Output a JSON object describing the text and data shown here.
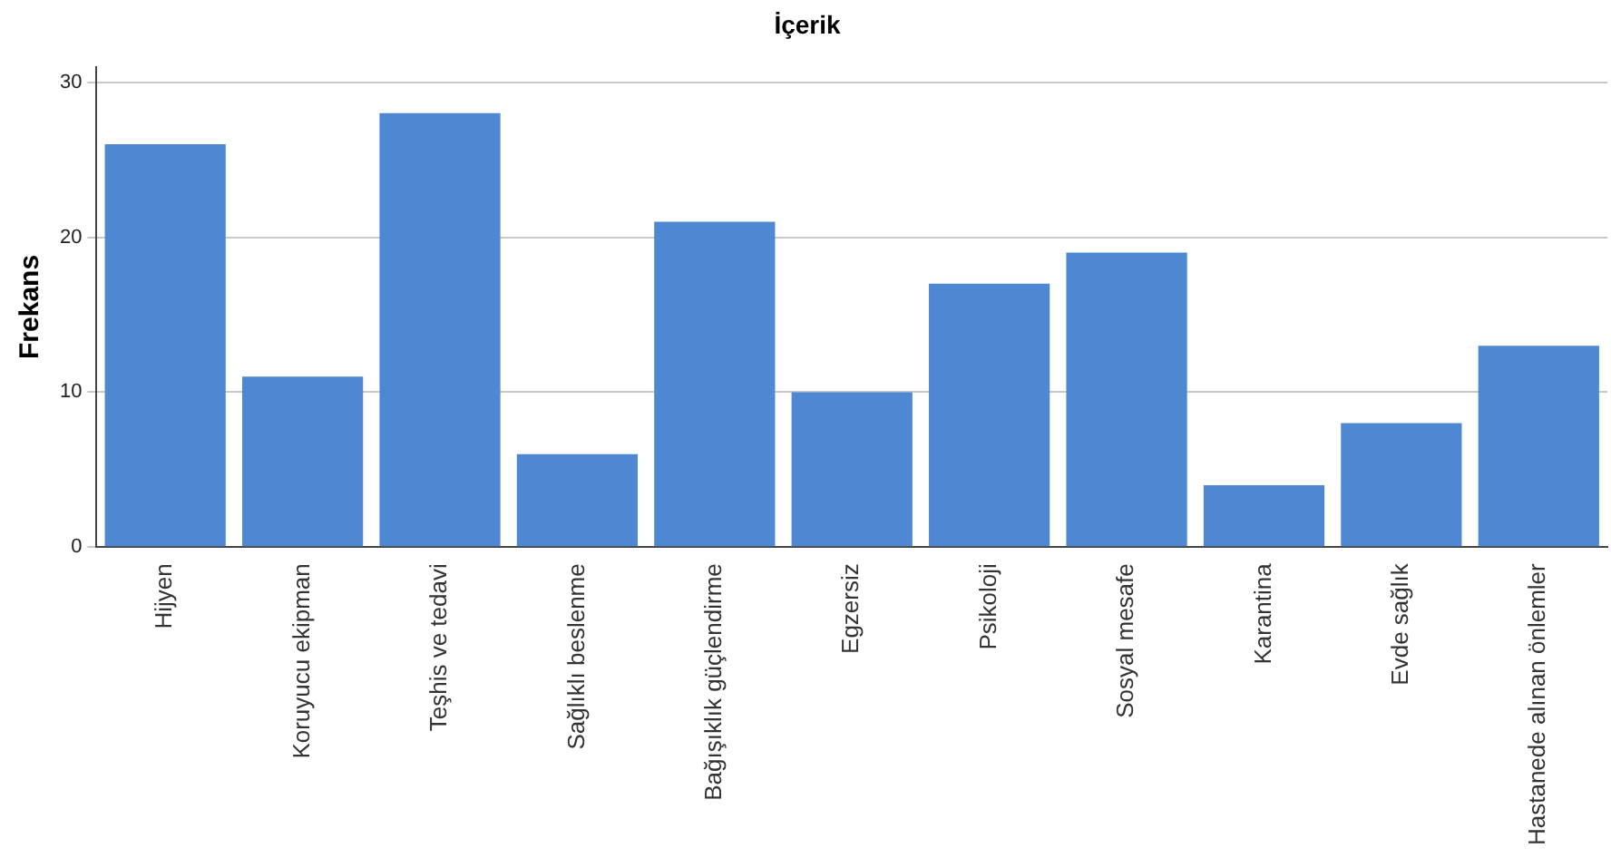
{
  "chart_data": {
    "type": "bar",
    "title": "İçerik",
    "ylabel": "Frekans",
    "categories": [
      "Hijyen",
      "Koruyucu ekipman",
      "Teşhis ve tedavi",
      "Sağlıklı beslenme",
      "Bağışıklık güçlendirme",
      "Egzersiz",
      "Psikoloji",
      "Sosyal mesafe",
      "Karantina",
      "Evde sağlık",
      "Hastanede alınan önlemler"
    ],
    "values": [
      26,
      11,
      28,
      6,
      21,
      10,
      17,
      19,
      4,
      8,
      13
    ],
    "color": "#4f88d2",
    "ylim": [
      0,
      31
    ],
    "yticks": [
      0,
      10,
      20,
      30
    ],
    "grid": "y",
    "legend": false
  }
}
